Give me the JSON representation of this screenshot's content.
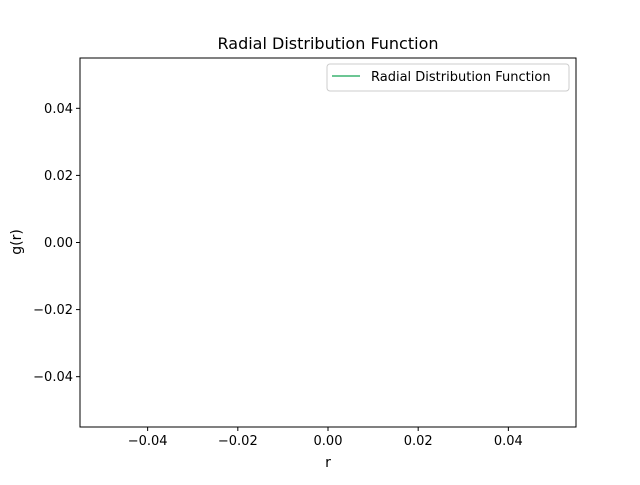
{
  "chart_data": {
    "type": "line",
    "title": "Radial Distribution Function",
    "xlabel": "r",
    "ylabel": "g(r)",
    "xlim": [
      -0.055,
      0.055
    ],
    "ylim": [
      -0.055,
      0.055
    ],
    "xticks": [
      -0.04,
      -0.02,
      0.0,
      0.02,
      0.04
    ],
    "yticks": [
      -0.04,
      -0.02,
      0.0,
      0.02,
      0.04
    ],
    "xtick_labels": [
      "−0.04",
      "−0.02",
      "0.00",
      "0.02",
      "0.04"
    ],
    "ytick_labels": [
      "−0.04",
      "−0.02",
      "0.00",
      "0.02",
      "0.04"
    ],
    "grid": false,
    "legend_position": "top-right",
    "series": [
      {
        "name": "Radial Distribution Function",
        "color": "#3cb371",
        "x": [],
        "y": []
      }
    ]
  }
}
